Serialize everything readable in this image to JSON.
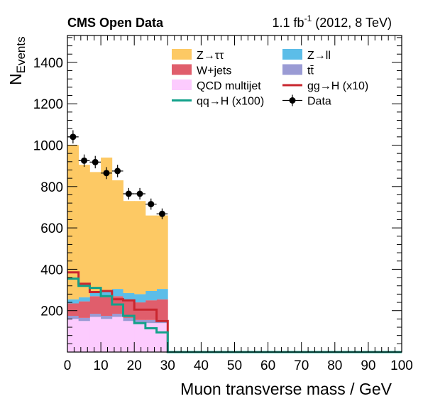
{
  "chart_data": {
    "type": "bar",
    "stacked": true,
    "header_left": "CMS Open Data",
    "header_right_prefix": "1.1 fb",
    "header_right_sup": "-1",
    "header_right_suffix": " (2012, 8 TeV)",
    "xlabel": "Muon transverse mass / GeV",
    "ylabel_main": "N",
    "ylabel_sub": "Events",
    "xlim": [
      0,
      100
    ],
    "ylim": [
      0,
      1530
    ],
    "x_ticks": [
      0,
      10,
      20,
      30,
      40,
      50,
      60,
      70,
      80,
      90,
      100
    ],
    "y_ticks": [
      200,
      400,
      600,
      800,
      1000,
      1200,
      1400
    ],
    "bin_edges": [
      0,
      3.33,
      6.67,
      10,
      13.33,
      16.67,
      20,
      23.33,
      26.67,
      30,
      100
    ],
    "stack_series": [
      {
        "name": "QCD multijet",
        "color": "#fccbfe",
        "values": [
          160,
          150,
          170,
          160,
          170,
          150,
          140,
          140,
          140,
          0
        ]
      },
      {
        "name": "tt̄",
        "color": "#9a9bd4",
        "values": [
          15,
          15,
          15,
          15,
          15,
          15,
          15,
          15,
          15,
          0
        ]
      },
      {
        "name": "W+jets",
        "color": "#e05e6c",
        "values": [
          60,
          80,
          85,
          90,
          85,
          85,
          85,
          95,
          100,
          0
        ]
      },
      {
        "name": "Z→ll",
        "color": "#5cbde8",
        "values": [
          20,
          20,
          25,
          25,
          35,
          35,
          40,
          45,
          50,
          0
        ]
      },
      {
        "name": "Z→ττ",
        "color": "#fdc964",
        "values": [
          745,
          640,
          575,
          650,
          525,
          445,
          450,
          365,
          355,
          0
        ]
      }
    ],
    "overlay_series": [
      {
        "name": "gg→H (x10)",
        "color": "#c9262e",
        "values": [
          385,
          330,
          290,
          295,
          255,
          250,
          205,
          205,
          150,
          0
        ]
      },
      {
        "name": "qq→H (x100)",
        "color": "#12a18a",
        "values": [
          355,
          320,
          310,
          270,
          230,
          175,
          140,
          115,
          95,
          0
        ]
      }
    ],
    "data_points": {
      "name": "Data",
      "x": [
        1.67,
        5,
        8.33,
        11.67,
        15,
        18.33,
        21.67,
        25,
        28.33
      ],
      "y": [
        1040,
        925,
        918,
        865,
        875,
        765,
        765,
        715,
        668
      ],
      "yerr": [
        32,
        30,
        30,
        29,
        30,
        28,
        28,
        27,
        26
      ]
    },
    "legend": {
      "placement": "top-right",
      "columns": [
        [
          {
            "label": "Z→ττ",
            "kind": "fill",
            "color": "#fdc964"
          },
          {
            "label": "W+jets",
            "kind": "fill",
            "color": "#e05e6c"
          },
          {
            "label": "QCD multijet",
            "kind": "fill",
            "color": "#fccbfe"
          },
          {
            "label": "qq→H (x100)",
            "kind": "line",
            "color": "#12a18a"
          }
        ],
        [
          {
            "label": "Z→ll",
            "kind": "fill",
            "color": "#5cbde8"
          },
          {
            "label": "tt̄",
            "kind": "fill",
            "color": "#9a9bd4"
          },
          {
            "label": "gg→H (x10)",
            "kind": "line",
            "color": "#c9262e"
          },
          {
            "label": "Data",
            "kind": "marker",
            "color": "#000000"
          }
        ]
      ]
    }
  }
}
